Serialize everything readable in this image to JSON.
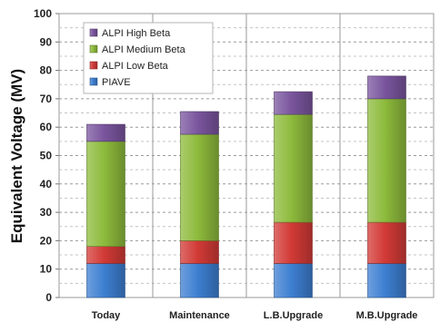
{
  "chart_data": {
    "type": "bar",
    "stacked": true,
    "categories": [
      "Today",
      "Maintenance",
      "L.B.Upgrade",
      "M.B.Upgrade"
    ],
    "series": [
      {
        "name": "PIAVE",
        "values": [
          12,
          12,
          12,
          12
        ],
        "color": "#3d7fd1"
      },
      {
        "name": "ALPI Low Beta",
        "values": [
          6,
          8,
          14.5,
          14.5
        ],
        "color": "#d23a36"
      },
      {
        "name": "ALPI Medium Beta",
        "values": [
          37,
          37.5,
          38,
          43.5
        ],
        "color": "#8dbb3c"
      },
      {
        "name": "ALPI High Beta",
        "values": [
          6,
          8,
          8,
          8
        ],
        "color": "#7a559e"
      }
    ],
    "title": "",
    "xlabel": "",
    "ylabel": "Equivalent Voltage (MV)",
    "ylim": [
      0,
      100
    ],
    "yticks": [
      0,
      10,
      20,
      30,
      40,
      50,
      60,
      70,
      80,
      90,
      100
    ],
    "grid": "horizontal-dashed",
    "legend_position": "top-left",
    "legend_order": [
      "ALPI High Beta",
      "ALPI Medium Beta",
      "ALPI Low Beta",
      "PIAVE"
    ]
  }
}
